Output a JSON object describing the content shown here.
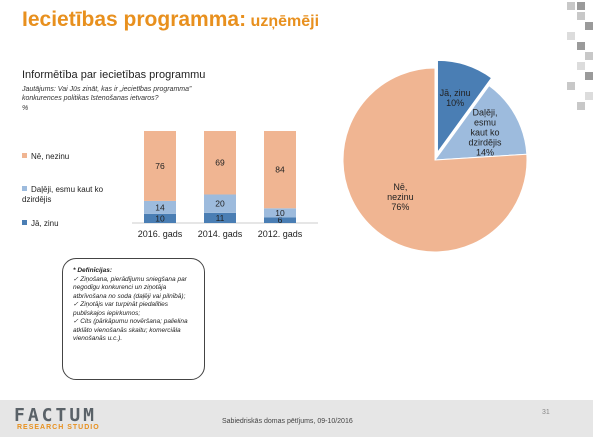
{
  "page": {
    "title_main": "Iecietības programma:",
    "title_sub": "uzņēmēji",
    "subtitle": "Informētība par iecietības programmu",
    "question": "Jautājums: Vai Jūs zināt, kas ir „iecietības programma” konkurences politikas īstenošanas ietvaros?",
    "unit": "%"
  },
  "colors": {
    "ne": "#f0b592",
    "dalji": "#9dbbdd",
    "ja": "#4a7eb4",
    "accent": "#e8901e"
  },
  "chart_data": [
    {
      "type": "bar",
      "stacked": true,
      "categories": [
        "2016. gads",
        "2014. gads",
        "2012. gads"
      ],
      "series": [
        {
          "name": "Jā, zinu",
          "values": [
            10,
            11,
            6
          ]
        },
        {
          "name": "Daļēji, esmu kaut ko dzirdējis",
          "values": [
            14,
            20,
            10
          ]
        },
        {
          "name": "Nē, nezinu",
          "values": [
            76,
            69,
            84
          ]
        }
      ],
      "ylim": [
        0,
        100
      ],
      "legend": "left"
    },
    {
      "type": "pie",
      "slices": [
        {
          "label": "Jā, zinu",
          "value": 10
        },
        {
          "label": "Daļēji, esmu kaut ko dzirdējis",
          "value": 14
        },
        {
          "label": "Nē, nezinu",
          "value": 76
        }
      ]
    }
  ],
  "pie_labels": [
    {
      "lines": [
        "Jā, zinu",
        "10%"
      ]
    },
    {
      "lines": [
        "Daļēji,",
        "esmu",
        "kaut ko",
        "dzirdējis",
        "14%"
      ]
    },
    {
      "lines": [
        "Nē,",
        "nezinu",
        "76%"
      ]
    }
  ],
  "legend": {
    "ne": "Nē, nezinu",
    "dalji": "Daļēji, esmu kaut ko dzirdējis",
    "dalji_line1": "Daļēji, esmu kaut ko",
    "dalji_line2": "dzirdējis",
    "ja": "Jā, zinu"
  },
  "definitions": {
    "heading": "* Definīcijas:",
    "items": [
      "✓ Ziņošana, pierādījumu sniegšana par negodīgu konkurenci un ziņotāja atbrīvošana no soda (daļēji vai pilnībā);",
      "✓ Ziņotājs var turpināt piedalīties publiskajos iepirkumos;",
      "✓ Cits (pārkāpumu novēršana; palielina atklāto vienošanās skaitu; komerciāla vienošanās u.c.)."
    ]
  },
  "footer": {
    "logo_top": "FACTUM",
    "logo_bottom": "RESEARCH STUDIO",
    "text": "Sabiedriskās domas pētījums, 09-10/2016",
    "page_number": "31"
  }
}
